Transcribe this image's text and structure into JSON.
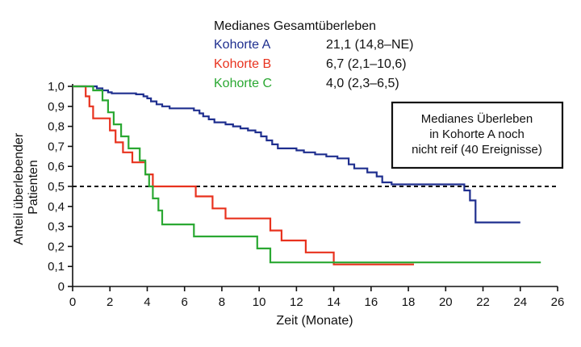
{
  "chart_data": {
    "type": "line",
    "subtype": "kaplan-meier step curves",
    "title": "",
    "xlabel": "Zeit (Monate)",
    "ylabel_lines": [
      "Anteil überlebender",
      "Patienten"
    ],
    "xlim": [
      0,
      26
    ],
    "ylim": [
      0,
      1.0
    ],
    "x_ticks": [
      0,
      2,
      4,
      6,
      8,
      10,
      12,
      14,
      16,
      18,
      20,
      22,
      24,
      26
    ],
    "x_tick_labels": [
      "0",
      "2",
      "4",
      "6",
      "8",
      "10",
      "12",
      "14",
      "16",
      "18",
      "20",
      "22",
      "24",
      "26"
    ],
    "y_ticks": [
      0,
      0.1,
      0.2,
      0.3,
      0.4,
      0.5,
      0.6,
      0.7,
      0.8,
      0.9,
      1.0
    ],
    "y_tick_labels": [
      "0",
      "0,1",
      "0,2",
      "0,3",
      "0,4",
      "0,5",
      "0,6",
      "0,7",
      "0,8",
      "0,9",
      "1,0"
    ],
    "grid": false,
    "reference_line": {
      "y": 0.5,
      "style": "dashed",
      "color": "#111111"
    },
    "legend": {
      "position": "top-center",
      "header": "Medianes Gesamtüberleben",
      "entries": [
        {
          "label": "Kohorte A",
          "median": "21,1 (14,8–NE)",
          "color": "#1f2f8f"
        },
        {
          "label": "Kohorte B",
          "median": "6,7 (2,1–10,6)",
          "color": "#e8321e"
        },
        {
          "label": "Kohorte C",
          "median": "4,0 (2,3–6,5)",
          "color": "#2aa832"
        }
      ]
    },
    "annotation": {
      "position": "top-right",
      "lines": [
        "Medianes Überleben",
        "in Kohorte A noch",
        "nicht reif (40 Ereignisse)"
      ]
    },
    "series": [
      {
        "name": "Kohorte A",
        "color": "#1f2f8f",
        "x": [
          0,
          1.3,
          1.6,
          1.9,
          2.1,
          3.4,
          3.8,
          4.0,
          4.2,
          4.5,
          4.8,
          5.2,
          6.5,
          6.8,
          7.0,
          7.3,
          7.6,
          8.2,
          8.6,
          9.0,
          9.4,
          9.8,
          10.1,
          10.4,
          10.7,
          11.0,
          12.0,
          12.4,
          13.0,
          13.6,
          14.2,
          14.8,
          15.1,
          15.8,
          16.3,
          16.6,
          17.1,
          21.0,
          21.3,
          21.6,
          24.0
        ],
        "y": [
          1.0,
          0.99,
          0.98,
          0.97,
          0.965,
          0.96,
          0.95,
          0.94,
          0.925,
          0.91,
          0.9,
          0.89,
          0.88,
          0.865,
          0.85,
          0.835,
          0.82,
          0.81,
          0.8,
          0.79,
          0.78,
          0.77,
          0.75,
          0.73,
          0.71,
          0.69,
          0.68,
          0.67,
          0.66,
          0.65,
          0.64,
          0.61,
          0.59,
          0.57,
          0.55,
          0.52,
          0.51,
          0.48,
          0.43,
          0.32,
          0.32
        ]
      },
      {
        "name": "Kohorte B",
        "color": "#e8321e",
        "x": [
          0,
          0.7,
          0.9,
          1.1,
          1.3,
          2.0,
          2.3,
          2.7,
          3.2,
          3.5,
          3.9,
          4.3,
          4.6,
          6.6,
          7.5,
          8.2,
          9.1,
          10.6,
          11.2,
          12.5,
          14.0,
          18.3
        ],
        "y": [
          1.0,
          0.95,
          0.9,
          0.84,
          0.84,
          0.78,
          0.72,
          0.67,
          0.62,
          0.62,
          0.56,
          0.5,
          0.5,
          0.45,
          0.39,
          0.34,
          0.34,
          0.28,
          0.23,
          0.17,
          0.11,
          0.11
        ]
      },
      {
        "name": "Kohorte C",
        "color": "#2aa832",
        "x": [
          0,
          1.1,
          1.6,
          1.9,
          2.2,
          2.6,
          3.0,
          3.6,
          3.9,
          4.1,
          4.3,
          4.6,
          4.8,
          6.5,
          9.9,
          10.6,
          25.1
        ],
        "y": [
          1.0,
          0.98,
          0.93,
          0.87,
          0.81,
          0.75,
          0.69,
          0.63,
          0.56,
          0.5,
          0.44,
          0.38,
          0.31,
          0.25,
          0.19,
          0.12,
          0.12
        ]
      }
    ]
  }
}
